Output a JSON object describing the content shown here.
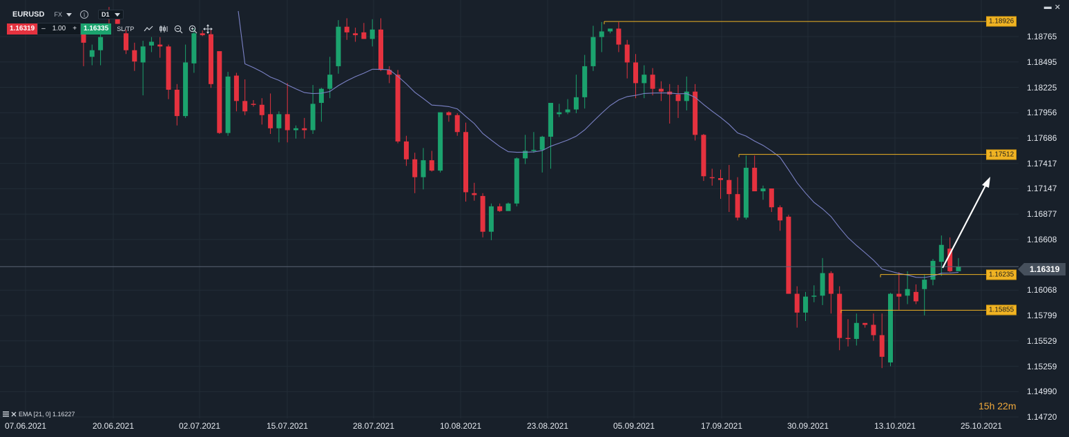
{
  "symbol": {
    "name": "EURUSD",
    "type": "FX",
    "timeframe": "D1"
  },
  "trade": {
    "sell_price": "1.16319",
    "minus": "–",
    "quantity": "1.00",
    "plus": "+",
    "buy_price": "1.16335",
    "sltp_label": "SL/TP"
  },
  "toolbar_icons": [
    "line-chart-icon",
    "candle-settings-icon",
    "zoom-out-icon",
    "zoom-in-icon",
    "move-icon"
  ],
  "window": {
    "minimize": "▬",
    "close": "✕"
  },
  "price_axis": {
    "labels": [
      "1.18765",
      "1.18495",
      "1.18225",
      "1.17956",
      "1.17686",
      "1.17417",
      "1.17147",
      "1.16877",
      "1.16608",
      "1.16068",
      "1.15799",
      "1.15529",
      "1.15259",
      "1.14990",
      "1.14720"
    ],
    "current_price": "1.16319"
  },
  "levels": [
    {
      "value": "1.18926"
    },
    {
      "value": "1.17512"
    },
    {
      "value": "1.16235"
    },
    {
      "value": "1.15855"
    }
  ],
  "date_axis": [
    "07.06.2021",
    "20.06.2021",
    "02.07.2021",
    "15.07.2021",
    "28.07.2021",
    "10.08.2021",
    "23.08.2021",
    "05.09.2021",
    "17.09.2021",
    "30.09.2021",
    "13.10.2021",
    "25.10.2021"
  ],
  "timer": "15h 22m",
  "indicator": {
    "label": "EMA [21, 0] 1.16227",
    "icon": "settings-icon",
    "close_icon": "close-icon"
  },
  "colors": {
    "background": "#18202a",
    "bull": "#1ba36e",
    "bear": "#e5323f",
    "ema": "#7b82c6",
    "level": "#f0b323",
    "arrow": "#ffffff"
  },
  "chart_data": {
    "type": "candlestick",
    "symbol": "EURUSD",
    "timeframe": "D1",
    "ylim": [
      1.1472,
      1.1905
    ],
    "ohlc": [
      [
        1.1881,
        1.1887,
        1.1845,
        1.187
      ],
      [
        1.1855,
        1.1868,
        1.1846,
        1.1862
      ],
      [
        1.1862,
        1.1888,
        1.1846,
        1.1876
      ],
      [
        1.1905,
        1.1908,
        1.189,
        1.1896
      ],
      [
        1.1897,
        1.1902,
        1.189,
        1.189
      ],
      [
        1.188,
        1.1884,
        1.1858,
        1.1862
      ],
      [
        1.1862,
        1.187,
        1.184,
        1.185
      ],
      [
        1.1849,
        1.1872,
        1.1814,
        1.1866
      ],
      [
        1.1867,
        1.1876,
        1.186,
        1.1871
      ],
      [
        1.1868,
        1.1876,
        1.1854,
        1.1866
      ],
      [
        1.1866,
        1.1868,
        1.181,
        1.182
      ],
      [
        1.182,
        1.1826,
        1.1782,
        1.1792
      ],
      [
        1.1792,
        1.1868,
        1.179,
        1.1849
      ],
      [
        1.1848,
        1.1885,
        1.1838,
        1.188
      ],
      [
        1.188,
        1.1883,
        1.1877,
        1.1878
      ],
      [
        1.1879,
        1.1884,
        1.1822,
        1.1826
      ],
      [
        1.1861,
        1.186,
        1.1773,
        1.1774
      ],
      [
        1.1774,
        1.1839,
        1.1771,
        1.1834
      ],
      [
        1.1835,
        1.1838,
        1.1797,
        1.1808
      ],
      [
        1.1808,
        1.1831,
        1.1793,
        1.1797
      ],
      [
        1.1805,
        1.1809,
        1.1802,
        1.1804
      ],
      [
        1.1804,
        1.1811,
        1.1783,
        1.1793
      ],
      [
        1.1794,
        1.1816,
        1.1773,
        1.1779
      ],
      [
        1.1779,
        1.1797,
        1.1764,
        1.1794
      ],
      [
        1.1794,
        1.1827,
        1.1764,
        1.1777
      ],
      [
        1.1777,
        1.1782,
        1.1768,
        1.1779
      ],
      [
        1.1779,
        1.179,
        1.1768,
        1.1777
      ],
      [
        1.1777,
        1.1825,
        1.1773,
        1.1805
      ],
      [
        1.1806,
        1.1822,
        1.1786,
        1.1821
      ],
      [
        1.1821,
        1.1855,
        1.1811,
        1.1836
      ],
      [
        1.1845,
        1.1894,
        1.1837,
        1.1887
      ],
      [
        1.1887,
        1.1896,
        1.1873,
        1.1881
      ],
      [
        1.188,
        1.1886,
        1.1871,
        1.1878
      ],
      [
        1.1881,
        1.1891,
        1.1874,
        1.1874
      ],
      [
        1.1874,
        1.1895,
        1.1866,
        1.1884
      ],
      [
        1.1884,
        1.1896,
        1.184,
        1.1841
      ],
      [
        1.1841,
        1.1845,
        1.1827,
        1.1836
      ],
      [
        1.1836,
        1.1841,
        1.1763,
        1.1765
      ],
      [
        1.1765,
        1.1771,
        1.1739,
        1.1746
      ],
      [
        1.1746,
        1.1753,
        1.171,
        1.1727
      ],
      [
        1.1727,
        1.1758,
        1.1714,
        1.1745
      ],
      [
        1.1745,
        1.1755,
        1.1733,
        1.1734
      ],
      [
        1.1734,
        1.1796,
        1.1732,
        1.1796
      ],
      [
        1.1796,
        1.1797,
        1.1786,
        1.1793
      ],
      [
        1.1793,
        1.1795,
        1.1771,
        1.1775
      ],
      [
        1.1775,
        1.1785,
        1.1701,
        1.1711
      ],
      [
        1.171,
        1.1721,
        1.1702,
        1.1708
      ],
      [
        1.1707,
        1.171,
        1.1663,
        1.1669
      ],
      [
        1.1669,
        1.1699,
        1.166,
        1.1696
      ],
      [
        1.1696,
        1.1699,
        1.169,
        1.1691
      ],
      [
        1.1691,
        1.17,
        1.1693,
        1.1699
      ],
      [
        1.1699,
        1.1748,
        1.1696,
        1.1747
      ],
      [
        1.1747,
        1.1772,
        1.1741,
        1.1755
      ],
      [
        1.1755,
        1.1775,
        1.1753,
        1.1756
      ],
      [
        1.1756,
        1.1771,
        1.1732,
        1.177
      ],
      [
        1.177,
        1.1803,
        1.1736,
        1.1806
      ],
      [
        1.1794,
        1.1805,
        1.1791,
        1.1796
      ],
      [
        1.1796,
        1.181,
        1.1794,
        1.1799
      ],
      [
        1.1799,
        1.1836,
        1.1795,
        1.1812
      ],
      [
        1.1812,
        1.1857,
        1.18,
        1.1845
      ],
      [
        1.1845,
        1.1888,
        1.184,
        1.1876
      ],
      [
        1.1876,
        1.1892,
        1.186,
        1.1882
      ],
      [
        1.1882,
        1.1885,
        1.188,
        1.1885
      ],
      [
        1.1885,
        1.1892,
        1.186,
        1.1868
      ],
      [
        1.1868,
        1.1873,
        1.1832,
        1.1849
      ],
      [
        1.1849,
        1.1858,
        1.1811,
        1.1827
      ],
      [
        1.1827,
        1.1846,
        1.1811,
        1.1836
      ],
      [
        1.1836,
        1.1843,
        1.1814,
        1.1821
      ],
      [
        1.1821,
        1.1829,
        1.1808,
        1.1818
      ],
      [
        1.1818,
        1.1826,
        1.1784,
        1.1815
      ],
      [
        1.1815,
        1.1825,
        1.179,
        1.1808
      ],
      [
        1.1808,
        1.1834,
        1.1798,
        1.1818
      ],
      [
        1.1818,
        1.1826,
        1.1766,
        1.1772
      ],
      [
        1.1772,
        1.1773,
        1.1723,
        1.1728
      ],
      [
        1.1727,
        1.1736,
        1.1718,
        1.1726
      ],
      [
        1.1726,
        1.1735,
        1.1704,
        1.1724
      ],
      [
        1.1724,
        1.174,
        1.169,
        1.1709
      ],
      [
        1.1709,
        1.1727,
        1.1681,
        1.1684
      ],
      [
        1.1684,
        1.175,
        1.1682,
        1.1737
      ],
      [
        1.1737,
        1.175,
        1.1716,
        1.1712
      ],
      [
        1.1712,
        1.1718,
        1.1703,
        1.1715
      ],
      [
        1.1715,
        1.1714,
        1.169,
        1.1695
      ],
      [
        1.1695,
        1.1697,
        1.167,
        1.1681
      ],
      [
        1.1685,
        1.1687,
        1.1603,
        1.1603
      ],
      [
        1.1603,
        1.1611,
        1.1567,
        1.1583
      ],
      [
        1.1583,
        1.1605,
        1.1574,
        1.16
      ],
      [
        1.16,
        1.1612,
        1.1594,
        1.1601
      ],
      [
        1.1601,
        1.1641,
        1.1591,
        1.1625
      ],
      [
        1.1625,
        1.1627,
        1.1582,
        1.1603
      ],
      [
        1.1603,
        1.1611,
        1.1543,
        1.1556
      ],
      [
        1.1556,
        1.1576,
        1.1547,
        1.1555
      ],
      [
        1.1555,
        1.1582,
        1.1548,
        1.1572
      ],
      [
        1.1572,
        1.1571,
        1.1567,
        1.157
      ],
      [
        1.157,
        1.1582,
        1.1553,
        1.1559
      ],
      [
        1.1559,
        1.1582,
        1.1524,
        1.1536
      ],
      [
        1.153,
        1.1604,
        1.1526,
        1.1603
      ],
      [
        1.1603,
        1.1626,
        1.1586,
        1.16
      ],
      [
        1.1601,
        1.1627,
        1.1592,
        1.1608
      ],
      [
        1.1605,
        1.1613,
        1.1592,
        1.1595
      ],
      [
        1.1608,
        1.1623,
        1.158,
        1.1618
      ],
      [
        1.1618,
        1.164,
        1.1612,
        1.1638
      ],
      [
        1.1637,
        1.1665,
        1.1622,
        1.1655
      ],
      [
        1.1651,
        1.1663,
        1.1626,
        1.1627
      ],
      [
        1.1627,
        1.1641,
        1.1628,
        1.1632
      ]
    ],
    "ema": {
      "label": "EMA [21, 0]",
      "last": 1.16227
    },
    "horizontal_levels": [
      1.18926,
      1.17512,
      1.16235,
      1.15855
    ],
    "current_price": 1.16319
  }
}
